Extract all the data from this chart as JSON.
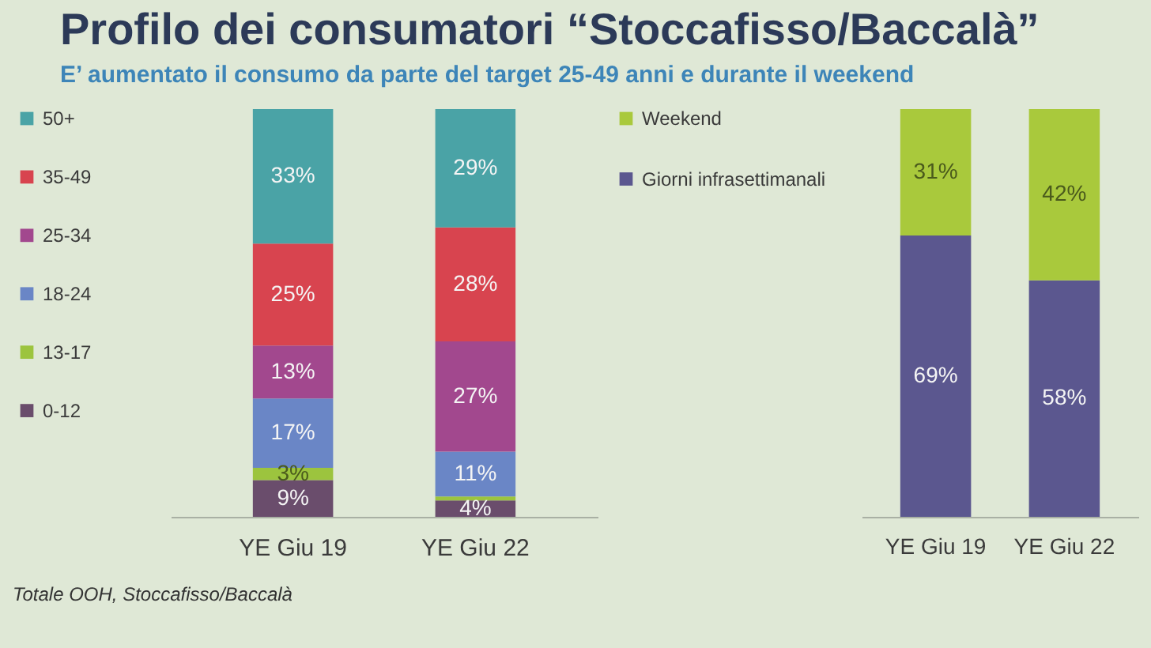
{
  "chart_data": [
    {
      "type": "bar",
      "title": "Profilo dei consumatori “Stoccafisso/Baccalà”",
      "subtitle": "E’ aumentato il consumo da parte del target 25-49 anni e durante il weekend",
      "categories": [
        "YE Giu 19",
        "YE Giu 22"
      ],
      "stacked": true,
      "legend": "left",
      "tick_labels": "x",
      "series": [
        {
          "name": "0-12",
          "color": "#6a4d6c",
          "values": [
            9,
            4
          ],
          "value_labels": [
            "9%",
            "4%"
          ]
        },
        {
          "name": "13-17",
          "color": "#9cc43e",
          "values": [
            3,
            1
          ],
          "value_labels": [
            "3%",
            null
          ]
        },
        {
          "name": "18-24",
          "color": "#6a86c6",
          "values": [
            17,
            11
          ],
          "value_labels": [
            "17%",
            "11%"
          ]
        },
        {
          "name": "25-34",
          "color": "#a2488e",
          "values": [
            13,
            27
          ],
          "value_labels": [
            "13%",
            "27%"
          ]
        },
        {
          "name": "35-49",
          "color": "#d8444f",
          "values": [
            25,
            28
          ],
          "value_labels": [
            "25%",
            "28%"
          ]
        },
        {
          "name": "50+",
          "color": "#4aa3a6",
          "values": [
            33,
            29
          ],
          "value_labels": [
            "33%",
            "29%"
          ]
        }
      ],
      "annotations": [
        "Totale OOH, Stoccafisso/Baccalà"
      ]
    },
    {
      "type": "bar",
      "categories": [
        "YE Giu 19",
        "YE Giu 22"
      ],
      "stacked": true,
      "legend": "left",
      "tick_labels": "x",
      "series": [
        {
          "name": "Giorni infrasettimanali",
          "color": "#5b578f",
          "values": [
            69,
            58
          ],
          "value_labels": [
            "69%",
            "58%"
          ]
        },
        {
          "name": "Weekend",
          "color": "#a9c93c",
          "values": [
            31,
            42
          ],
          "value_labels": [
            "31%",
            "42%"
          ]
        }
      ]
    }
  ]
}
